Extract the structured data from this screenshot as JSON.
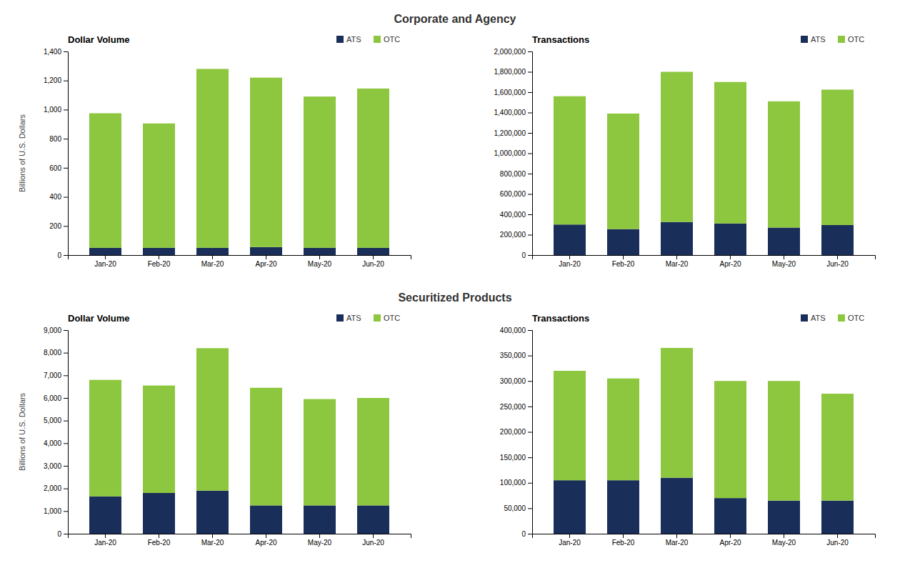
{
  "annotations": [
    "Corporate and Agency",
    "Securitized Products"
  ],
  "chart_data": [
    {
      "type": "bar",
      "stacked": true,
      "title": "Dollar Volume",
      "ylabel": "Billions of U.S. Dollars",
      "categories": [
        "Jan-20",
        "Feb-20",
        "Mar-20",
        "Apr-20",
        "May-20",
        "Jun-20"
      ],
      "series": [
        {
          "name": "ATS",
          "color": "#1a2e5a",
          "values": [
            50,
            50,
            50,
            55,
            50,
            50
          ]
        },
        {
          "name": "OTC",
          "color": "#8dc63f",
          "values": [
            925,
            855,
            1230,
            1165,
            1040,
            1095
          ]
        }
      ],
      "ylim": [
        0,
        1400
      ],
      "yticks": [
        0,
        200,
        400,
        600,
        800,
        {
          "value": 1000,
          "label": "1,000"
        },
        {
          "value": 1200,
          "label": "1,200"
        },
        {
          "value": 1400,
          "label": "1,400"
        }
      ],
      "grid": false,
      "legend": "upper right"
    },
    {
      "type": "bar",
      "stacked": true,
      "title": "Transactions",
      "categories": [
        "Jan-20",
        "Feb-20",
        "Mar-20",
        "Apr-20",
        "May-20",
        "Jun-20"
      ],
      "series": [
        {
          "name": "ATS",
          "color": "#1a2e5a",
          "values": [
            300000,
            255000,
            325000,
            310000,
            270000,
            295000
          ]
        },
        {
          "name": "OTC",
          "color": "#8dc63f",
          "values": [
            1260000,
            1135000,
            1475000,
            1390000,
            1240000,
            1330000
          ]
        }
      ],
      "ylim": [
        0,
        2000000
      ],
      "yticks": [
        0,
        {
          "value": 200000,
          "label": "200,000"
        },
        {
          "value": 400000,
          "label": "400,000"
        },
        {
          "value": 600000,
          "label": "600,000"
        },
        {
          "value": 800000,
          "label": "800,000"
        },
        {
          "value": 1000000,
          "label": "1,000,000"
        },
        {
          "value": 1200000,
          "label": "1,200,000"
        },
        {
          "value": 1400000,
          "label": "1,400,000"
        },
        {
          "value": 1600000,
          "label": "1,600,000"
        },
        {
          "value": 1800000,
          "label": "1,800,000"
        },
        {
          "value": 2000000,
          "label": "2,000,000"
        }
      ],
      "grid": false,
      "legend": "upper right"
    },
    {
      "type": "bar",
      "stacked": true,
      "title": "Dollar Volume",
      "ylabel": "Billions of U.S. Dollars",
      "categories": [
        "Jan-20",
        "Feb-20",
        "Mar-20",
        "Apr-20",
        "May-20",
        "Jun-20"
      ],
      "series": [
        {
          "name": "ATS",
          "color": "#1a2e5a",
          "values": [
            1650,
            1800,
            1900,
            1250,
            1250,
            1250
          ]
        },
        {
          "name": "OTC",
          "color": "#8dc63f",
          "values": [
            5150,
            4750,
            6300,
            5200,
            4700,
            4750
          ]
        }
      ],
      "ylim": [
        0,
        9000
      ],
      "yticks": [
        0,
        {
          "value": 1000,
          "label": "1,000"
        },
        {
          "value": 2000,
          "label": "2,000"
        },
        {
          "value": 3000,
          "label": "3,000"
        },
        {
          "value": 4000,
          "label": "4,000"
        },
        {
          "value": 5000,
          "label": "5,000"
        },
        {
          "value": 6000,
          "label": "6,000"
        },
        {
          "value": 7000,
          "label": "7,000"
        },
        {
          "value": 8000,
          "label": "8,000"
        },
        {
          "value": 9000,
          "label": "9,000"
        }
      ],
      "grid": false,
      "legend": "upper right"
    },
    {
      "type": "bar",
      "stacked": true,
      "title": "Transactions",
      "categories": [
        "Jan-20",
        "Feb-20",
        "Mar-20",
        "Apr-20",
        "May-20",
        "Jun-20"
      ],
      "series": [
        {
          "name": "ATS",
          "color": "#1a2e5a",
          "values": [
            105000,
            105000,
            110000,
            70000,
            65000,
            65000
          ]
        },
        {
          "name": "OTC",
          "color": "#8dc63f",
          "values": [
            215000,
            200000,
            255000,
            230000,
            235000,
            210000
          ]
        }
      ],
      "ylim": [
        0,
        400000
      ],
      "yticks": [
        0,
        {
          "value": 50000,
          "label": "50,000"
        },
        {
          "value": 100000,
          "label": "100,000"
        },
        {
          "value": 150000,
          "label": "150,000"
        },
        {
          "value": 200000,
          "label": "200,000"
        },
        {
          "value": 250000,
          "label": "250,000"
        },
        {
          "value": 300000,
          "label": "300,000"
        },
        {
          "value": 350000,
          "label": "350,000"
        },
        {
          "value": 400000,
          "label": "400,000"
        }
      ],
      "grid": false,
      "legend": "upper right"
    }
  ]
}
